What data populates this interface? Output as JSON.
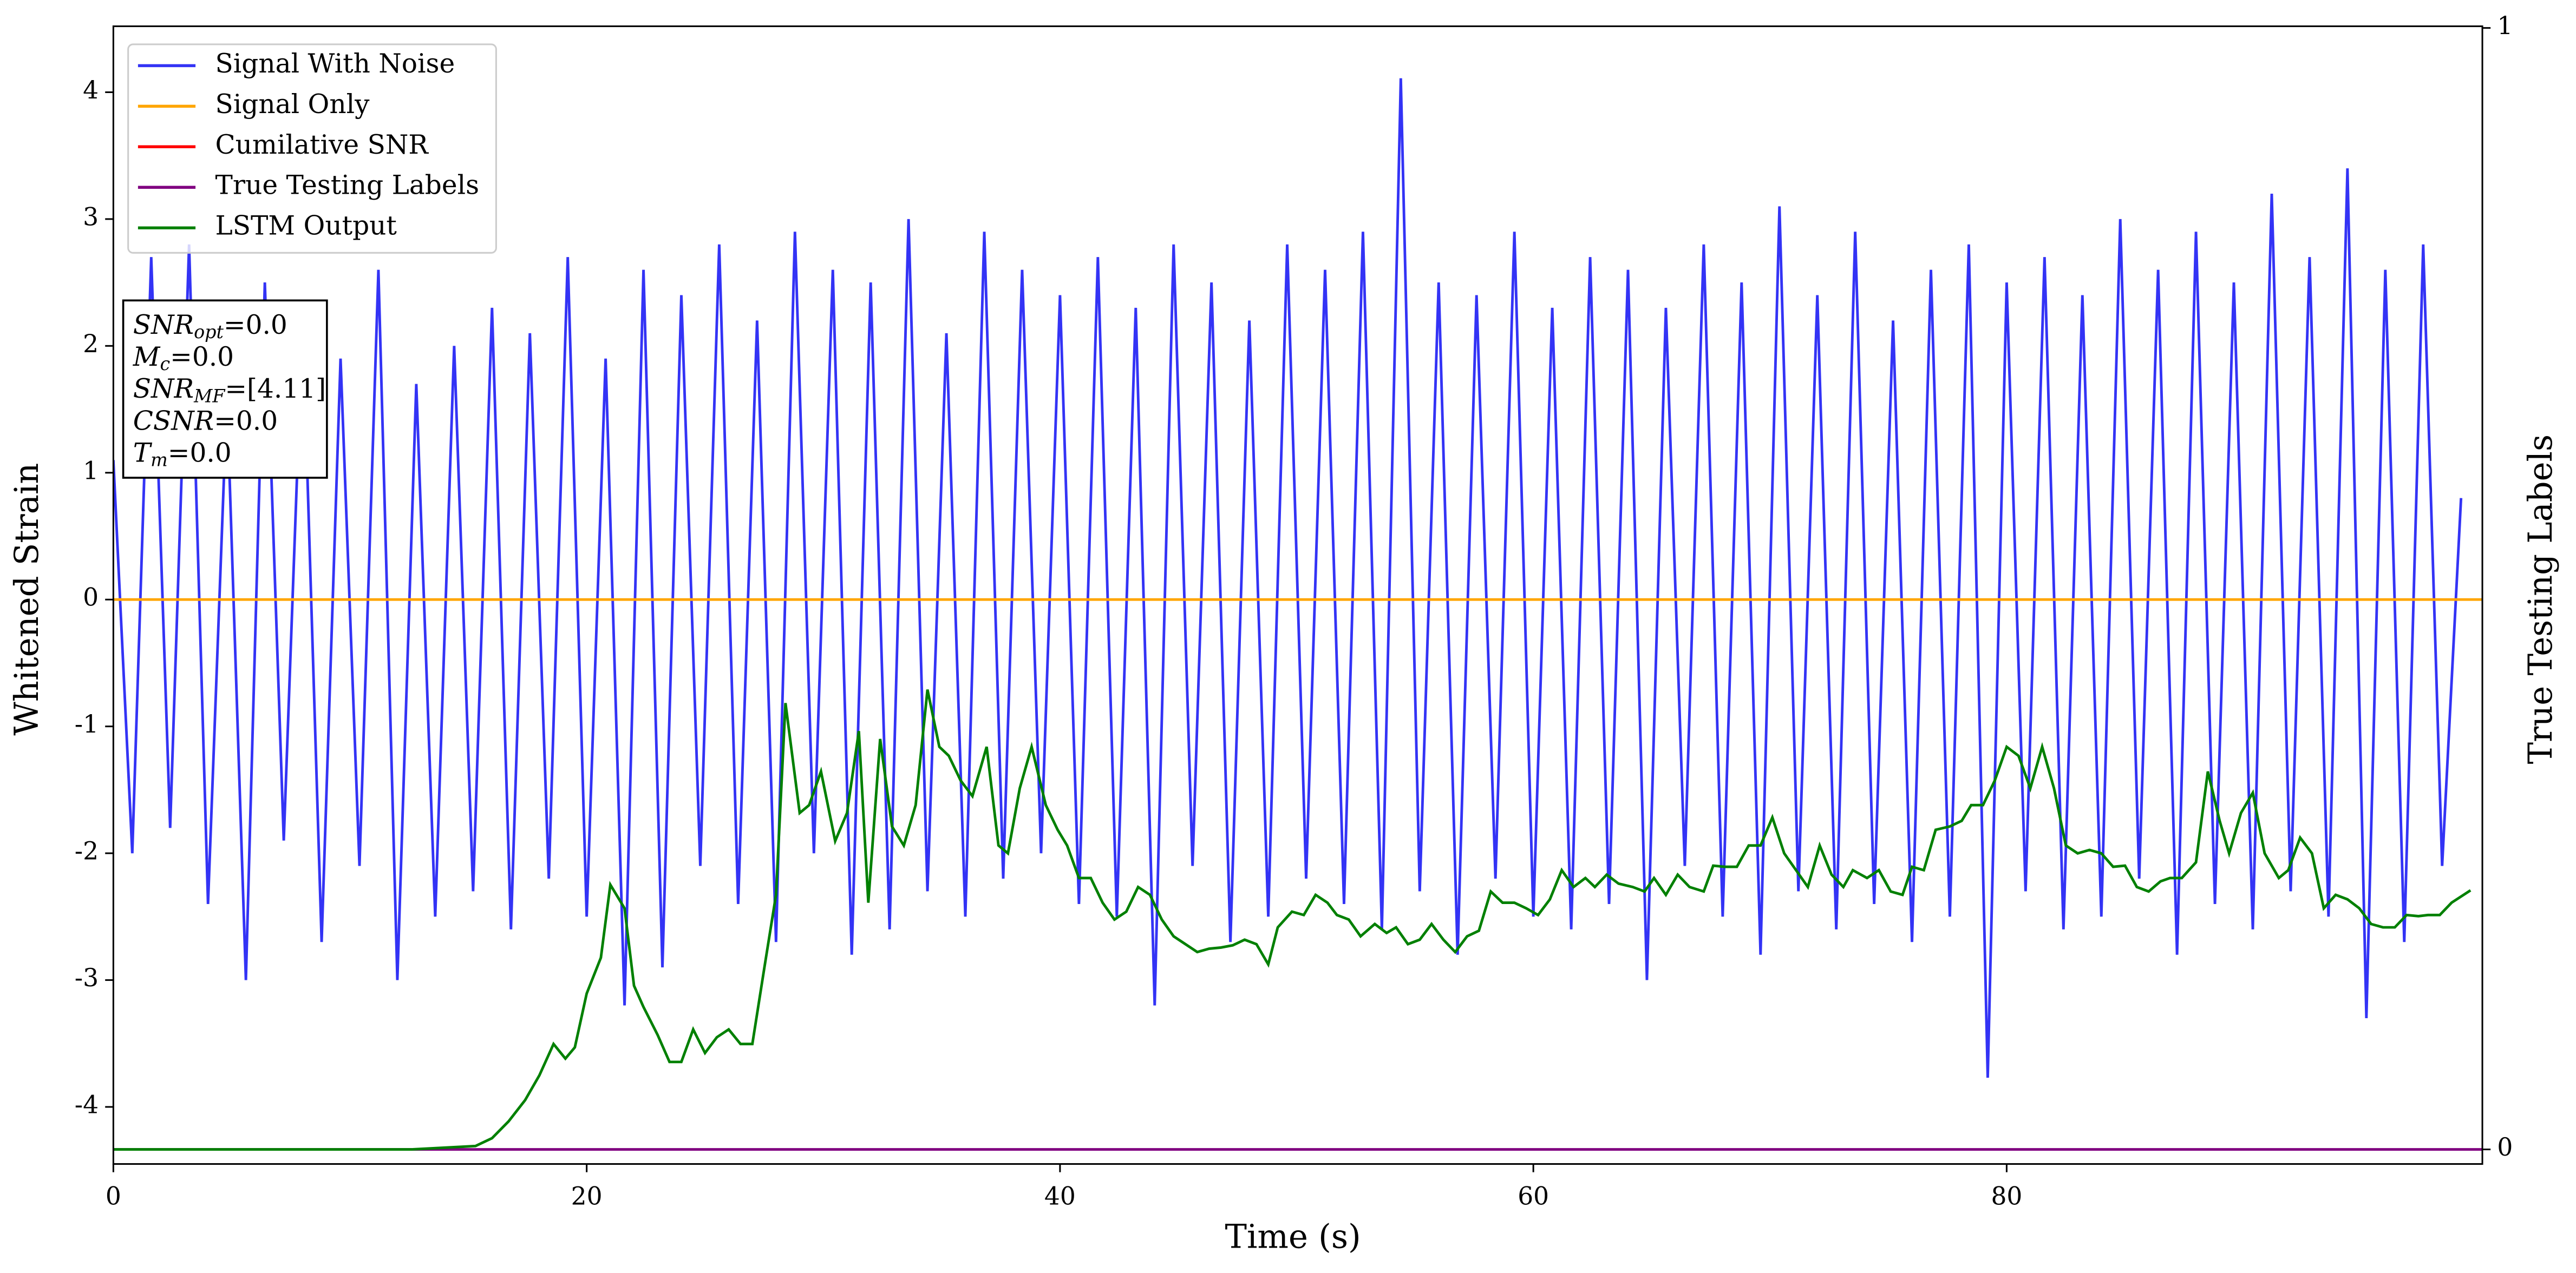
{
  "chart_data": {
    "type": "line",
    "xlabel": "Time (s)",
    "ylabel": "Whitened Strain",
    "y2label": "True Testing Labels",
    "xlim": [
      0,
      100.1
    ],
    "ylim": [
      -4.45,
      4.52
    ],
    "y2lim": [
      -0.013,
      1.0015
    ],
    "xticks": [
      0,
      20,
      40,
      60,
      80
    ],
    "yticks": [
      -4,
      -3,
      -2,
      -1,
      0,
      1,
      2,
      3,
      4
    ],
    "y2ticks": [
      0,
      1
    ],
    "legend": "upper left",
    "annotation_lines": [
      {
        "base": "SNR",
        "sub": "opt",
        "text": "=0.0"
      },
      {
        "base": "M",
        "sub": "c",
        "text": "=0.0"
      },
      {
        "base": "SNR",
        "sub": "MF",
        "text": "=[4.11]"
      },
      {
        "base": "CSNR",
        "sub": "",
        "text": "=0.0"
      },
      {
        "base": "T",
        "sub": "m",
        "text": "=0.0"
      }
    ],
    "series": [
      {
        "name": "Signal With Noise",
        "color": "#3333f5",
        "x": [
          0,
          0.8,
          1.6,
          2.4,
          3.2,
          4,
          4.8,
          5.6,
          6.4,
          7.2,
          8,
          8.8,
          9.6,
          10.4,
          11.2,
          12,
          12.8,
          13.6,
          14.4,
          15.2,
          16,
          16.8,
          17.6,
          18.4,
          19.2,
          20,
          20.8,
          21.6,
          22.4,
          23.2,
          24,
          24.8,
          25.6,
          26.4,
          27.2,
          28,
          28.8,
          29.6,
          30.4,
          31.2,
          32,
          32.8,
          33.6,
          34.4,
          35.2,
          36,
          36.8,
          37.6,
          38.4,
          39.2,
          40,
          40.8,
          41.6,
          42.4,
          43.2,
          44,
          44.8,
          45.6,
          46.4,
          47.2,
          48,
          48.8,
          49.6,
          50.4,
          51.2,
          52,
          52.8,
          53.6,
          54.4,
          55.2,
          56,
          56.8,
          57.6,
          58.4,
          59.2,
          60,
          60.8,
          61.6,
          62.4,
          63.2,
          64,
          64.8,
          65.6,
          66.4,
          67.2,
          68,
          68.8,
          69.6,
          70.4,
          71.2,
          72,
          72.8,
          73.6,
          74.4,
          75.2,
          76,
          76.8,
          77.6,
          78.4,
          79.2,
          80,
          80.8,
          81.6,
          82.4,
          83.2,
          84,
          84.8,
          85.6,
          86.4,
          87.2,
          88,
          88.8,
          89.6,
          90.4,
          91.2,
          92,
          92.8,
          93.6,
          94.4,
          95.2,
          96,
          96.8,
          97.6,
          98.4,
          99.2
        ],
        "values": [
          1.1,
          -2.0,
          2.7,
          -1.8,
          2.8,
          -2.4,
          1.6,
          -3.0,
          2.5,
          -1.9,
          2.2,
          -2.7,
          1.9,
          -2.1,
          2.6,
          -3.0,
          1.7,
          -2.5,
          2.0,
          -2.3,
          2.3,
          -2.6,
          2.1,
          -2.2,
          2.7,
          -2.5,
          1.9,
          -3.2,
          2.6,
          -2.9,
          2.4,
          -2.1,
          2.8,
          -2.4,
          2.2,
          -2.7,
          2.9,
          -2.0,
          2.6,
          -2.8,
          2.5,
          -2.6,
          3.0,
          -2.3,
          2.1,
          -2.5,
          2.9,
          -2.2,
          2.6,
          -2.0,
          2.4,
          -2.4,
          2.7,
          -2.5,
          2.3,
          -3.2,
          2.8,
          -2.1,
          2.5,
          -2.7,
          2.2,
          -2.5,
          2.8,
          -2.2,
          2.6,
          -2.4,
          2.9,
          -2.6,
          4.11,
          -2.3,
          2.5,
          -2.8,
          2.4,
          -2.2,
          2.9,
          -2.5,
          2.3,
          -2.6,
          2.7,
          -2.4,
          2.6,
          -3.0,
          2.3,
          -2.1,
          2.8,
          -2.5,
          2.5,
          -2.8,
          3.1,
          -2.3,
          2.4,
          -2.6,
          2.9,
          -2.4,
          2.2,
          -2.7,
          2.6,
          -2.5,
          2.8,
          -3.77,
          2.5,
          -2.3,
          2.7,
          -2.6,
          2.4,
          -2.5,
          3.0,
          -2.2,
          2.6,
          -2.8,
          2.9,
          -2.4,
          2.5,
          -2.6,
          3.2,
          -2.3,
          2.7,
          -2.5,
          3.4,
          -3.3,
          2.6,
          -2.7,
          2.8,
          -2.1,
          0.8
        ]
      },
      {
        "name": "Signal Only",
        "color": "orange",
        "x": [
          0,
          100.1
        ],
        "values": [
          0,
          0
        ]
      },
      {
        "name": "Cumilative SNR",
        "color": "red",
        "x": [],
        "values": []
      },
      {
        "name": "True Testing Labels",
        "color": "purple",
        "axis": "y2",
        "x": [
          0,
          100.1
        ],
        "values": [
          0,
          0
        ]
      },
      {
        "name": "LSTM Output",
        "color": "green",
        "axis": "y2",
        "x": [
          0,
          12.6,
          15.3,
          16,
          16.7,
          17.4,
          18,
          18.6,
          19.1,
          19.5,
          20,
          20.6,
          21,
          21.6,
          22,
          22.4,
          23,
          23.5,
          24,
          24.5,
          25,
          25.5,
          26,
          26.5,
          27,
          27.5,
          28,
          28.4,
          29,
          29.4,
          29.9,
          30.5,
          31,
          31.5,
          31.9,
          32.4,
          32.9,
          33.4,
          33.9,
          34.4,
          34.9,
          35.3,
          35.8,
          36.3,
          36.9,
          37.4,
          37.8,
          38.3,
          38.8,
          39.4,
          39.9,
          40.3,
          40.8,
          41.3,
          41.8,
          42.3,
          42.8,
          43.3,
          43.8,
          44.3,
          44.8,
          45.3,
          45.8,
          46.3,
          46.8,
          47.3,
          47.8,
          48.3,
          48.8,
          49.2,
          49.8,
          50.3,
          50.8,
          51.3,
          51.7,
          52.2,
          52.7,
          53.3,
          53.8,
          54.2,
          54.7,
          55.2,
          55.7,
          56.2,
          56.7,
          57.2,
          57.7,
          58.2,
          58.7,
          59.2,
          59.7,
          60.2,
          60.7,
          61.2,
          61.7,
          62.2,
          62.6,
          63.1,
          63.6,
          64.2,
          64.7,
          65.1,
          65.6,
          66.1,
          66.6,
          67.2,
          67.6,
          68.1,
          68.6,
          69.1,
          69.6,
          70.1,
          70.6,
          71.1,
          71.6,
          72.1,
          72.6,
          73.1,
          73.5,
          74.1,
          74.6,
          75.1,
          75.6,
          76,
          76.5,
          77,
          77.6,
          78.1,
          78.5,
          79,
          79.5,
          80,
          80.5,
          81,
          81.5,
          82,
          82.5,
          83,
          83.5,
          84,
          84.5,
          85,
          85.5,
          86,
          86.5,
          86.9,
          87.4,
          88,
          88.5,
          89,
          89.4,
          89.9,
          90.4,
          90.9,
          91.5,
          91.9,
          92.4,
          92.9,
          93.4,
          93.9,
          94.4,
          94.9,
          95.4,
          95.9,
          96.4,
          96.9,
          97.4,
          97.8,
          98.3,
          98.8,
          99.6
        ],
        "values": [
          0,
          0,
          0.003,
          0.01,
          0.025,
          0.044,
          0.066,
          0.094,
          0.081,
          0.091,
          0.139,
          0.171,
          0.236,
          0.215,
          0.146,
          0.127,
          0.102,
          0.078,
          0.078,
          0.107,
          0.086,
          0.1,
          0.107,
          0.094,
          0.094,
          0.161,
          0.227,
          0.398,
          0.3,
          0.307,
          0.337,
          0.275,
          0.3,
          0.373,
          0.22,
          0.366,
          0.288,
          0.271,
          0.307,
          0.41,
          0.359,
          0.351,
          0.329,
          0.315,
          0.359,
          0.271,
          0.264,
          0.322,
          0.359,
          0.307,
          0.285,
          0.271,
          0.242,
          0.242,
          0.22,
          0.205,
          0.212,
          0.234,
          0.227,
          0.205,
          0.19,
          0.183,
          0.176,
          0.179,
          0.18,
          0.182,
          0.187,
          0.183,
          0.165,
          0.198,
          0.212,
          0.209,
          0.227,
          0.22,
          0.209,
          0.205,
          0.19,
          0.201,
          0.193,
          0.198,
          0.183,
          0.187,
          0.201,
          0.187,
          0.176,
          0.19,
          0.195,
          0.23,
          0.22,
          0.22,
          0.215,
          0.209,
          0.223,
          0.249,
          0.234,
          0.242,
          0.234,
          0.245,
          0.237,
          0.234,
          0.23,
          0.242,
          0.227,
          0.245,
          0.234,
          0.23,
          0.253,
          0.252,
          0.252,
          0.271,
          0.271,
          0.296,
          0.264,
          0.249,
          0.234,
          0.271,
          0.245,
          0.234,
          0.249,
          0.242,
          0.249,
          0.23,
          0.227,
          0.252,
          0.249,
          0.285,
          0.288,
          0.293,
          0.307,
          0.307,
          0.329,
          0.359,
          0.351,
          0.322,
          0.359,
          0.322,
          0.271,
          0.264,
          0.267,
          0.264,
          0.252,
          0.253,
          0.234,
          0.23,
          0.239,
          0.242,
          0.242,
          0.256,
          0.337,
          0.293,
          0.264,
          0.3,
          0.318,
          0.264,
          0.242,
          0.249,
          0.278,
          0.264,
          0.215,
          0.227,
          0.223,
          0.215,
          0.201,
          0.198,
          0.198,
          0.209,
          0.208,
          0.209,
          0.209,
          0.22,
          0.231
        ]
      }
    ]
  }
}
